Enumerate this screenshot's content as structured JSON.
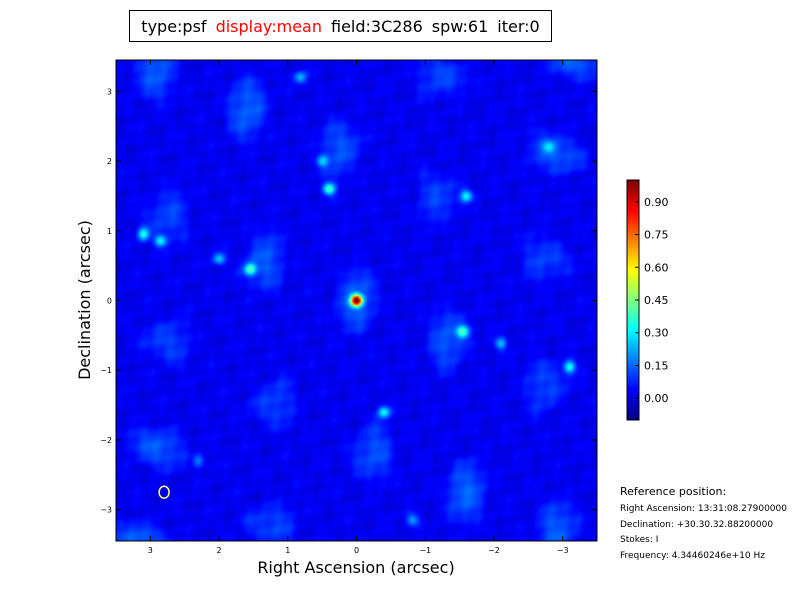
{
  "header": {
    "type": "type:psf",
    "display": "display:mean",
    "field": "field:3C286",
    "spw": "spw:61",
    "iter": "iter:0",
    "display_color": "#ff0000"
  },
  "chart_data": {
    "type": "heatmap",
    "title": "",
    "xlabel": "Right Ascension (arcsec)",
    "ylabel": "Declination (arcsec)",
    "xlim": [
      3.5,
      -3.5
    ],
    "ylim": [
      -3.45,
      3.45
    ],
    "x_ticks": [
      3,
      2,
      1,
      0,
      -1,
      -2,
      -3
    ],
    "x_tick_labels": [
      "3",
      "2",
      "1",
      "0",
      "−1",
      "−2",
      "−3"
    ],
    "y_ticks": [
      3,
      2,
      1,
      0,
      -1,
      -2,
      -3
    ],
    "y_tick_labels": [
      "3",
      "2",
      "1",
      "0",
      "−1",
      "−2",
      "−3"
    ],
    "colormap": "jet",
    "colorbar": {
      "range": [
        -0.1,
        1.0
      ],
      "ticks": [
        0.0,
        0.15,
        0.3,
        0.45,
        0.6,
        0.75,
        0.9
      ],
      "tick_labels": [
        "0.00",
        "0.15",
        "0.30",
        "0.45",
        "0.60",
        "0.75",
        "0.90"
      ]
    },
    "peak": {
      "x": 0,
      "y": 0,
      "value": 1.0
    },
    "sidelobes": [
      {
        "x": 0.4,
        "y": 1.6,
        "value": 0.38
      },
      {
        "x": -1.55,
        "y": -0.45,
        "value": 0.33
      },
      {
        "x": 1.55,
        "y": 0.45,
        "value": 0.33
      },
      {
        "x": -0.4,
        "y": -1.6,
        "value": 0.3
      },
      {
        "x": 3.1,
        "y": 0.95,
        "value": 0.32
      },
      {
        "x": -3.1,
        "y": -0.95,
        "value": 0.32
      },
      {
        "x": 2.85,
        "y": 0.85,
        "value": 0.28
      },
      {
        "x": -1.6,
        "y": 1.5,
        "value": 0.26
      },
      {
        "x": 2.0,
        "y": 0.6,
        "value": 0.24
      },
      {
        "x": -2.1,
        "y": -0.62,
        "value": 0.22
      },
      {
        "x": 0.82,
        "y": 3.2,
        "value": 0.22
      },
      {
        "x": -0.82,
        "y": -3.15,
        "value": 0.2
      },
      {
        "x": -2.8,
        "y": 2.2,
        "value": 0.18
      },
      {
        "x": 0.5,
        "y": 2.0,
        "value": 0.2
      },
      {
        "x": 2.3,
        "y": -2.3,
        "value": 0.16
      }
    ],
    "marker": {
      "shape": "ellipse",
      "x": 2.8,
      "y": -2.75,
      "color": "#ffff66"
    }
  },
  "reference": {
    "heading": "Reference position:",
    "ra": "Right Ascension: 13:31:08.27900000",
    "dec": "Declination: +30.30.32.88200000",
    "stokes": "Stokes: I",
    "frequency": "Frequency: 4.34460246e+10 Hz"
  }
}
